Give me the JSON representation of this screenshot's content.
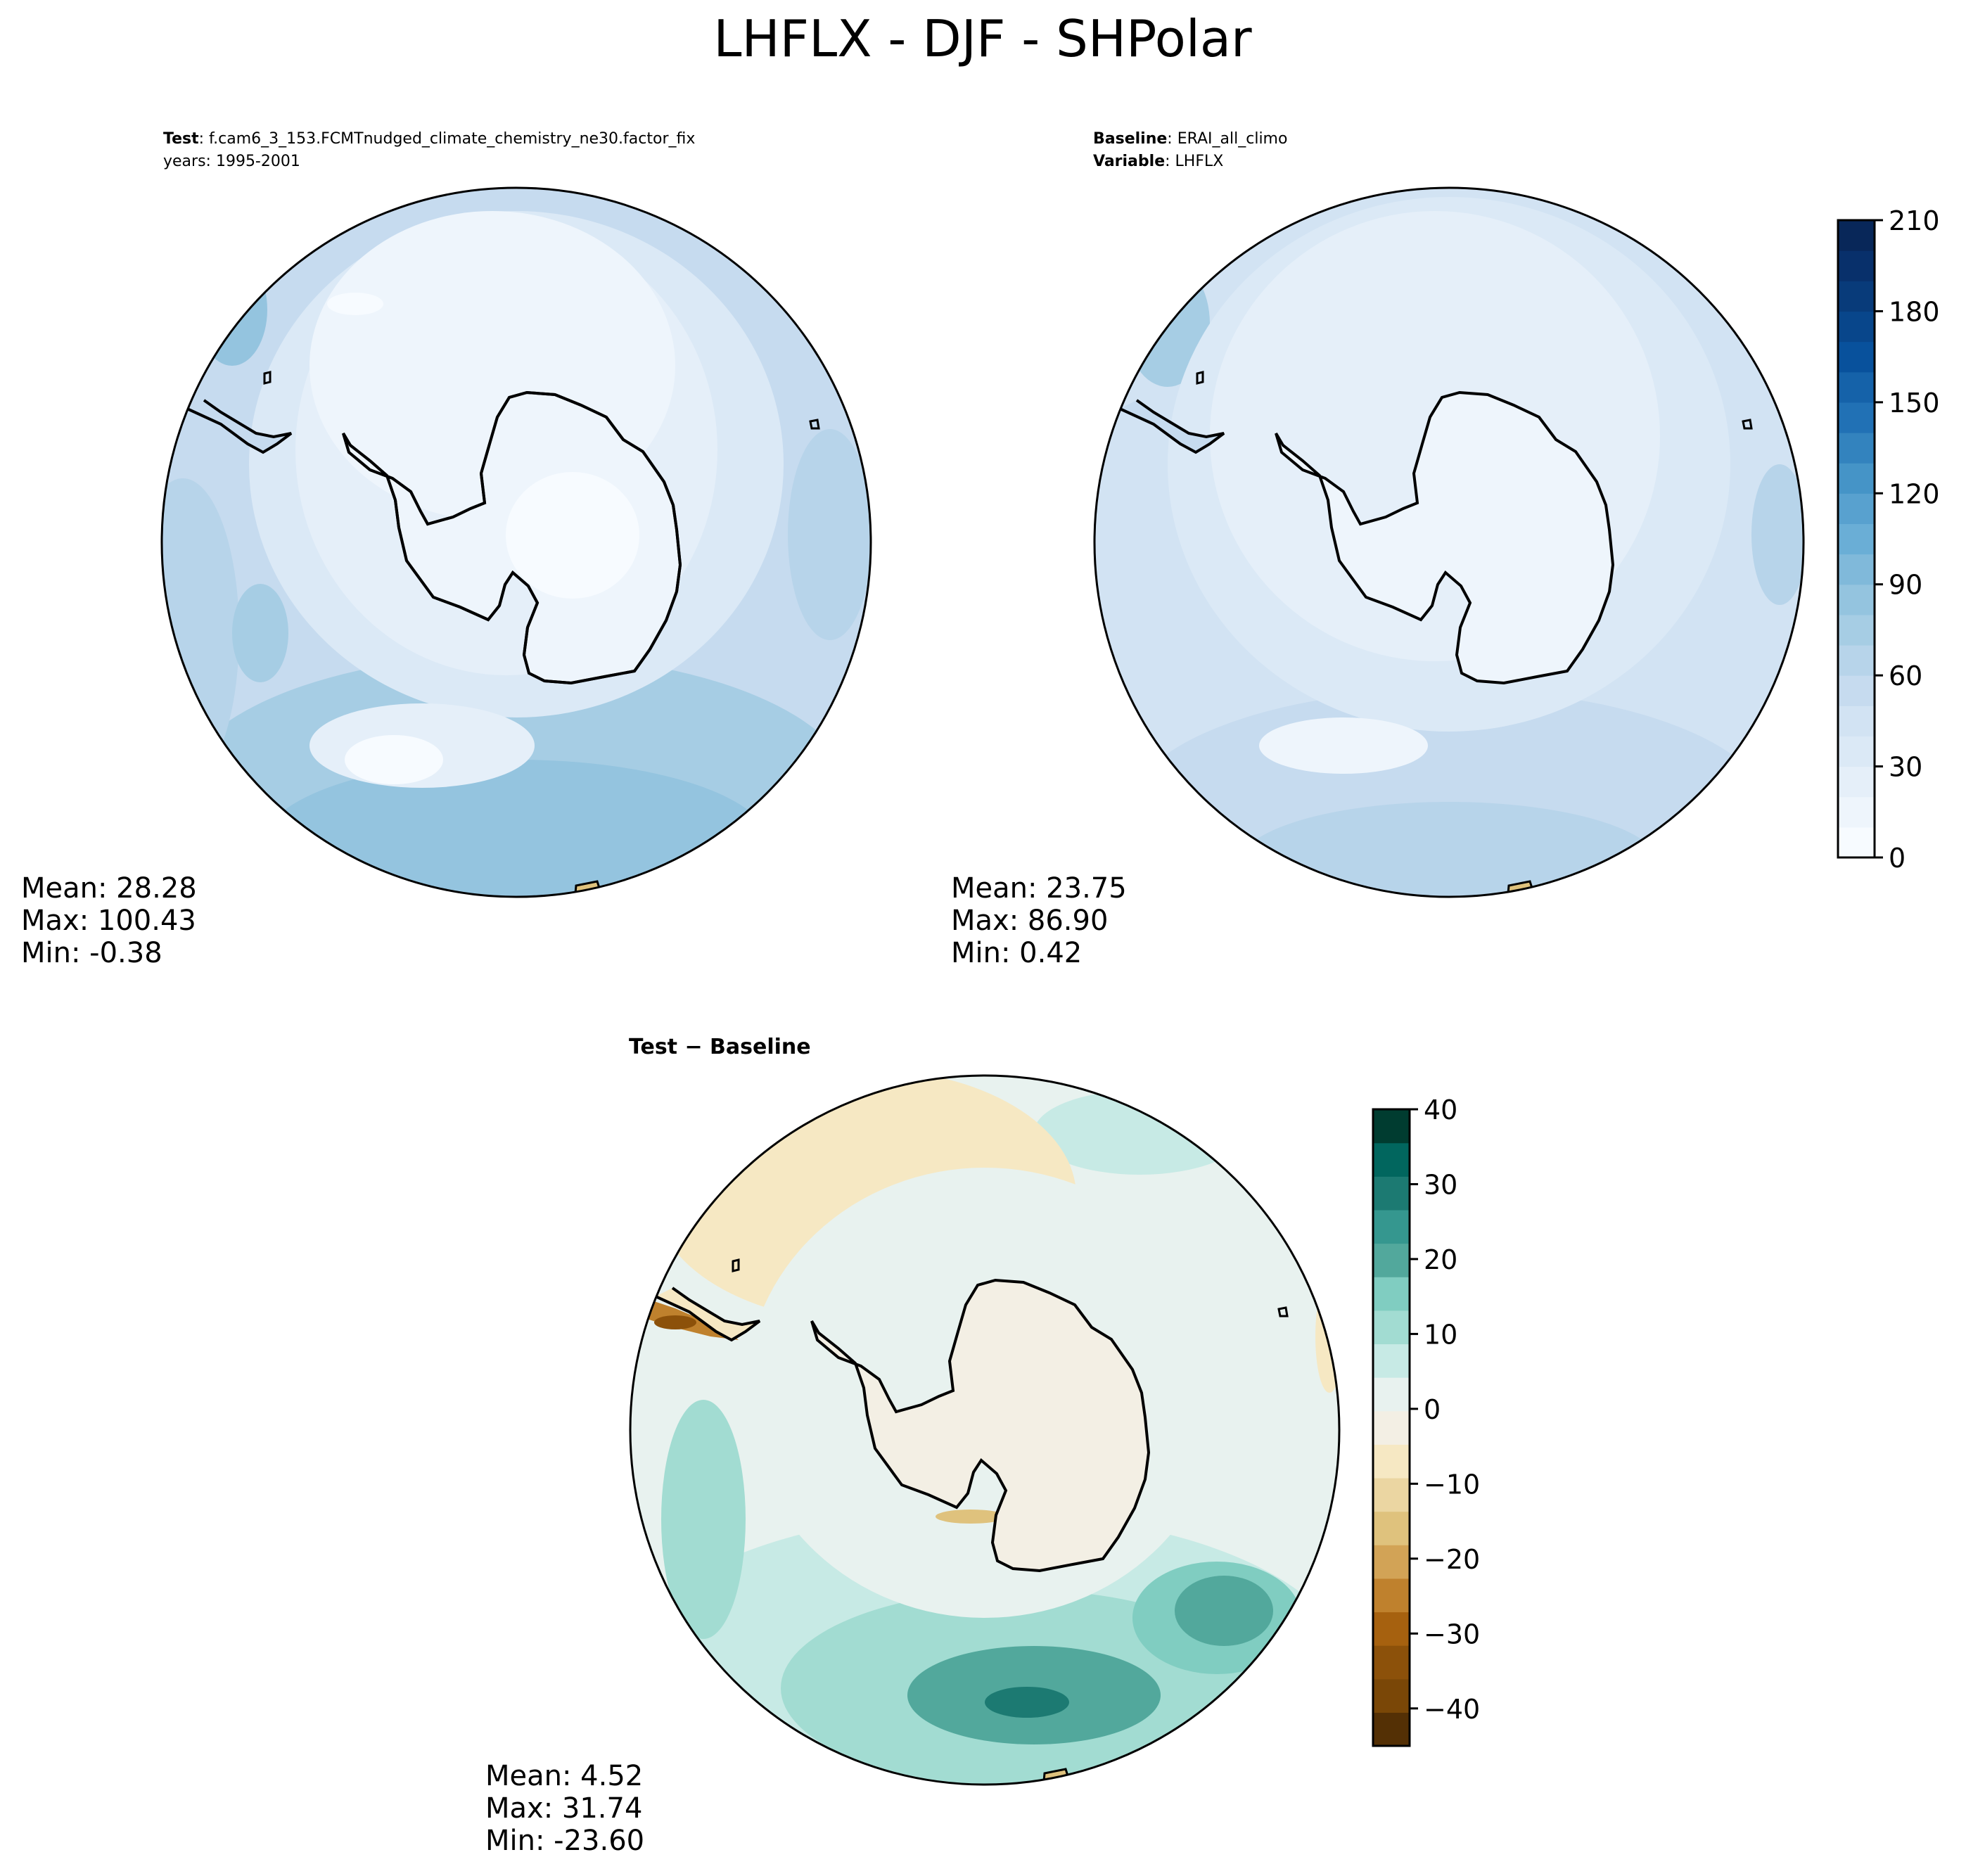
{
  "figure": {
    "title": "LHFLX - DJF - SHPolar"
  },
  "colors": {
    "blues": [
      "#f7fbff",
      "#eef5fc",
      "#e5eff9",
      "#dbe9f6",
      "#d2e3f3",
      "#c6dbef",
      "#b7d4ea",
      "#a6cde4",
      "#94c4df",
      "#80b9da",
      "#6aaed6",
      "#58a1cf",
      "#4594c7",
      "#3383be",
      "#2171b5",
      "#1562a9",
      "#08519c",
      "#08468b",
      "#083b7a",
      "#08306b",
      "#082759"
    ],
    "brbg": [
      "#543005",
      "#7a4707",
      "#8c510a",
      "#a6610f",
      "#bf812d",
      "#d2a356",
      "#dfc27d",
      "#ebd6a2",
      "#f6e8c3",
      "#f3efe4",
      "#e8f2ef",
      "#c7eae5",
      "#a2dcd2",
      "#80cdc1",
      "#52a89c",
      "#35978f",
      "#1c7a72",
      "#01665e",
      "#003c30"
    ],
    "land_outline": "#000000"
  },
  "panels": {
    "test": {
      "label_bold": "Test",
      "label_text": ": f.cam6_3_153.FCMTnudged_climate_chemistry_ne30.factor_fix",
      "years": "years: 1995-2001",
      "stats": [
        "Mean: 28.28",
        "Max: 100.43",
        "Min: -0.38"
      ]
    },
    "baseline": {
      "label_bold": "Baseline",
      "label_text": ": ERAI_all_climo",
      "var_bold": "Variable",
      "var_text": ": LHFLX",
      "stats": [
        "Mean: 23.75",
        "Max: 86.90",
        "Min:  0.42"
      ]
    },
    "diff": {
      "label": "Test − Baseline",
      "stats": [
        "Mean:  4.52",
        "Max: 31.74",
        "Min: -23.60"
      ]
    }
  },
  "chart_data": [
    {
      "type": "heatmap",
      "panel": "test",
      "projection": "south polar stereographic",
      "mean": 28.28,
      "max": 100.43,
      "min": -0.38,
      "colorbar": {
        "levels": [
          0,
          210
        ],
        "ticks": [
          0,
          30,
          60,
          90,
          120,
          150,
          180,
          210
        ],
        "tick_labels": [
          "0",
          "30",
          "60",
          "90",
          "120",
          "150",
          "180",
          "210"
        ]
      }
    },
    {
      "type": "heatmap",
      "panel": "baseline",
      "projection": "south polar stereographic",
      "mean": 23.75,
      "max": 86.9,
      "min": 0.42,
      "colorbar": {
        "levels": [
          0,
          210
        ],
        "ticks": [
          0,
          30,
          60,
          90,
          120,
          150,
          180,
          210
        ],
        "tick_labels": [
          "0",
          "30",
          "60",
          "90",
          "120",
          "150",
          "180",
          "210"
        ]
      }
    },
    {
      "type": "heatmap",
      "panel": "difference",
      "projection": "south polar stereographic",
      "mean": 4.52,
      "max": 31.74,
      "min": -23.6,
      "colorbar": {
        "levels": [
          -45,
          40
        ],
        "ticks": [
          -40,
          -30,
          -20,
          -10,
          0,
          10,
          20,
          30,
          40
        ],
        "tick_labels": [
          "−40",
          "−30",
          "−20",
          "−10",
          "0",
          "10",
          "20",
          "30",
          "40"
        ]
      }
    }
  ]
}
